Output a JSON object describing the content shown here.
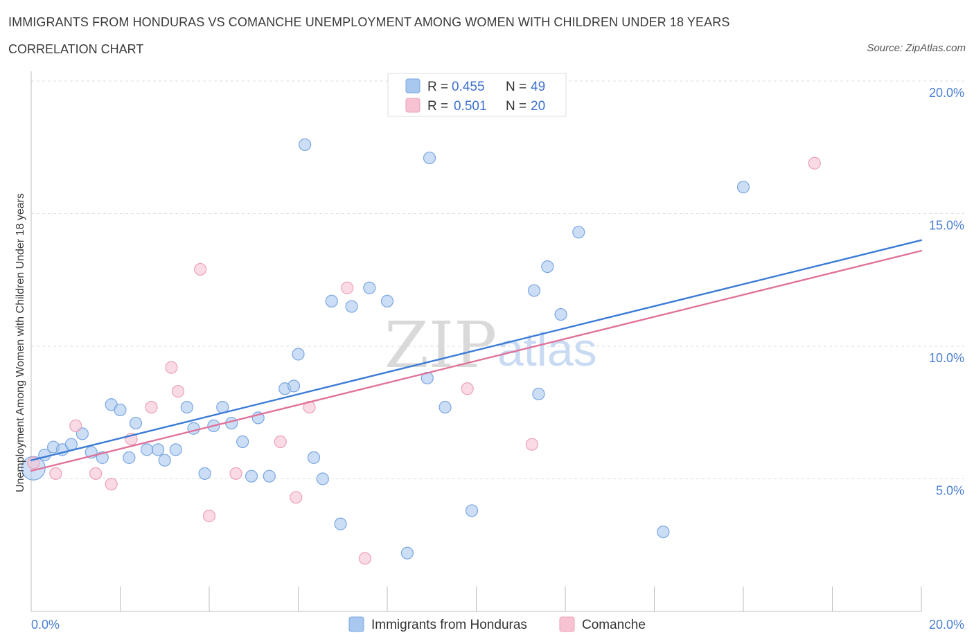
{
  "header": {
    "title": "IMMIGRANTS FROM HONDURAS VS COMANCHE UNEMPLOYMENT AMONG WOMEN WITH CHILDREN UNDER 18 YEARS",
    "subtitle": "CORRELATION CHART",
    "source": "Source: ZipAtlas.com"
  },
  "legend_box": {
    "rows": [
      {
        "r_label": "R =",
        "r_value": "0.455",
        "n_label": "N =",
        "n_value": "49"
      },
      {
        "r_label": "R =",
        "r_value": "0.501",
        "n_label": "N =",
        "n_value": "20"
      }
    ]
  },
  "watermark": {
    "zip": "ZIP",
    "atlas": "atlas"
  },
  "chart_data": {
    "type": "scatter",
    "ylabel": "Unemployment Among Women with Children Under 18 years",
    "xlim": [
      0,
      20
    ],
    "ylim": [
      0,
      20
    ],
    "x_tick_labels": [
      "0.0%",
      "20.0%"
    ],
    "y_tick_values": [
      5,
      10,
      15,
      20
    ],
    "y_tick_labels": [
      "5.0%",
      "10.0%",
      "15.0%",
      "20.0%"
    ],
    "grid": "horizontal dashed",
    "legend_position": "bottom-center",
    "series": [
      {
        "name": "Immigrants from Honduras",
        "color": "#a9c8f0",
        "stroke": "#7aa6e0",
        "trend_color": "#3a7bd5",
        "trend": {
          "x0": 0,
          "y0": 5.7,
          "x1": 20,
          "y1": 14.0
        },
        "points": [
          [
            0.05,
            5.4
          ],
          [
            0.3,
            5.9
          ],
          [
            0.5,
            6.2
          ],
          [
            0.7,
            6.1
          ],
          [
            0.9,
            6.3
          ],
          [
            1.15,
            6.7
          ],
          [
            1.35,
            6.0
          ],
          [
            1.6,
            5.8
          ],
          [
            1.8,
            7.8
          ],
          [
            2.0,
            7.6
          ],
          [
            2.2,
            5.8
          ],
          [
            2.35,
            7.1
          ],
          [
            2.6,
            6.1
          ],
          [
            2.85,
            6.1
          ],
          [
            3.0,
            5.7
          ],
          [
            3.25,
            6.1
          ],
          [
            3.5,
            7.7
          ],
          [
            3.65,
            6.9
          ],
          [
            3.9,
            5.2
          ],
          [
            4.1,
            7.0
          ],
          [
            4.3,
            7.7
          ],
          [
            4.5,
            7.1
          ],
          [
            4.75,
            6.4
          ],
          [
            4.95,
            5.1
          ],
          [
            5.1,
            7.3
          ],
          [
            5.35,
            5.1
          ],
          [
            5.7,
            8.4
          ],
          [
            5.9,
            8.5
          ],
          [
            6.0,
            9.7
          ],
          [
            6.15,
            17.6
          ],
          [
            6.35,
            5.8
          ],
          [
            6.55,
            5.0
          ],
          [
            6.75,
            11.7
          ],
          [
            6.95,
            3.3
          ],
          [
            7.2,
            11.5
          ],
          [
            7.6,
            12.2
          ],
          [
            8.0,
            11.7
          ],
          [
            8.45,
            2.2
          ],
          [
            8.9,
            8.8
          ],
          [
            8.95,
            17.1
          ],
          [
            9.3,
            7.7
          ],
          [
            9.9,
            3.8
          ],
          [
            11.3,
            12.1
          ],
          [
            11.4,
            8.2
          ],
          [
            11.6,
            13.0
          ],
          [
            11.9,
            11.2
          ],
          [
            12.3,
            14.3
          ],
          [
            14.2,
            3.0
          ],
          [
            16.0,
            16.0
          ]
        ]
      },
      {
        "name": "Comanche",
        "color": "#f7c3d3",
        "stroke": "#eba1b8",
        "trend_color": "#e0729b",
        "trend": {
          "x0": 0,
          "y0": 5.3,
          "x1": 20,
          "y1": 13.6
        },
        "points": [
          [
            0.05,
            5.6
          ],
          [
            0.55,
            5.2
          ],
          [
            1.0,
            7.0
          ],
          [
            1.45,
            5.2
          ],
          [
            1.8,
            4.8
          ],
          [
            2.25,
            6.5
          ],
          [
            2.7,
            7.7
          ],
          [
            3.15,
            9.2
          ],
          [
            3.3,
            8.3
          ],
          [
            3.8,
            12.9
          ],
          [
            4.0,
            3.6
          ],
          [
            4.6,
            5.2
          ],
          [
            5.6,
            6.4
          ],
          [
            5.95,
            4.3
          ],
          [
            6.25,
            7.7
          ],
          [
            7.1,
            12.2
          ],
          [
            7.5,
            2.0
          ],
          [
            9.8,
            8.4
          ],
          [
            11.25,
            6.3
          ],
          [
            17.6,
            16.9
          ]
        ]
      }
    ]
  }
}
